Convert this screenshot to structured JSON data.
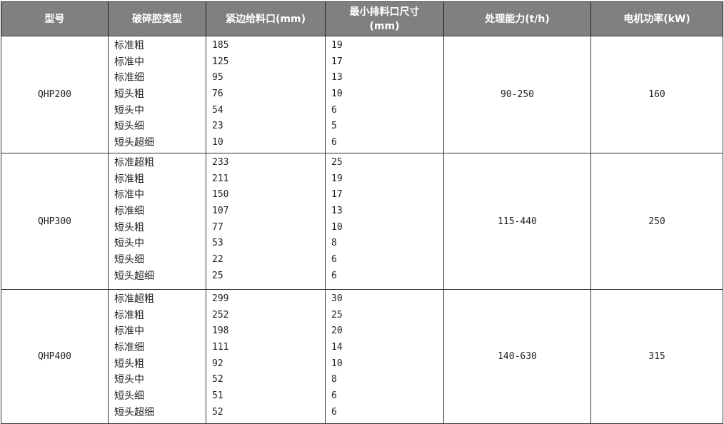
{
  "headers": [
    "型号",
    "破碎腔类型",
    "紧边给料口(mm)",
    "最小排料口尺寸(mm)",
    "处理能力(t/h)",
    "电机功率(kW)"
  ],
  "header_colors": {
    "background": "#808080",
    "text": "#ffffff"
  },
  "rows": [
    {
      "model": "QHP200",
      "cavities": [
        "标准粗",
        "标准中",
        "标准细",
        "短头粗",
        "短头中",
        "短头细",
        "短头超细"
      ],
      "feed": [
        "185",
        "125",
        "95",
        "76",
        "54",
        "23",
        "10"
      ],
      "discharge": [
        "19",
        "17",
        "13",
        "10",
        "6",
        "5",
        "6"
      ],
      "capacity": "90-250",
      "power": "160"
    },
    {
      "model": "QHP300",
      "cavities": [
        "标准超粗",
        "标准粗",
        "标准中",
        "标准细",
        "短头粗",
        "短头中",
        "短头细",
        "短头超细"
      ],
      "feed": [
        "233",
        "211",
        "150",
        "107",
        "77",
        "53",
        "22",
        "25"
      ],
      "discharge": [
        "25",
        "19",
        "17",
        "13",
        "10",
        "8",
        "6",
        "6"
      ],
      "capacity": "115-440",
      "power": "250"
    },
    {
      "model": "QHP400",
      "cavities": [
        "标准超粗",
        "标准粗",
        "标准中",
        "标准细",
        "短头粗",
        "短头中",
        "短头细",
        "短头超细"
      ],
      "feed": [
        "299",
        "252",
        "198",
        "111",
        "92",
        "52",
        "51",
        "52"
      ],
      "discharge": [
        "30",
        "25",
        "20",
        "14",
        "10",
        "8",
        "6",
        "6"
      ],
      "capacity": "140-630",
      "power": "315"
    }
  ]
}
